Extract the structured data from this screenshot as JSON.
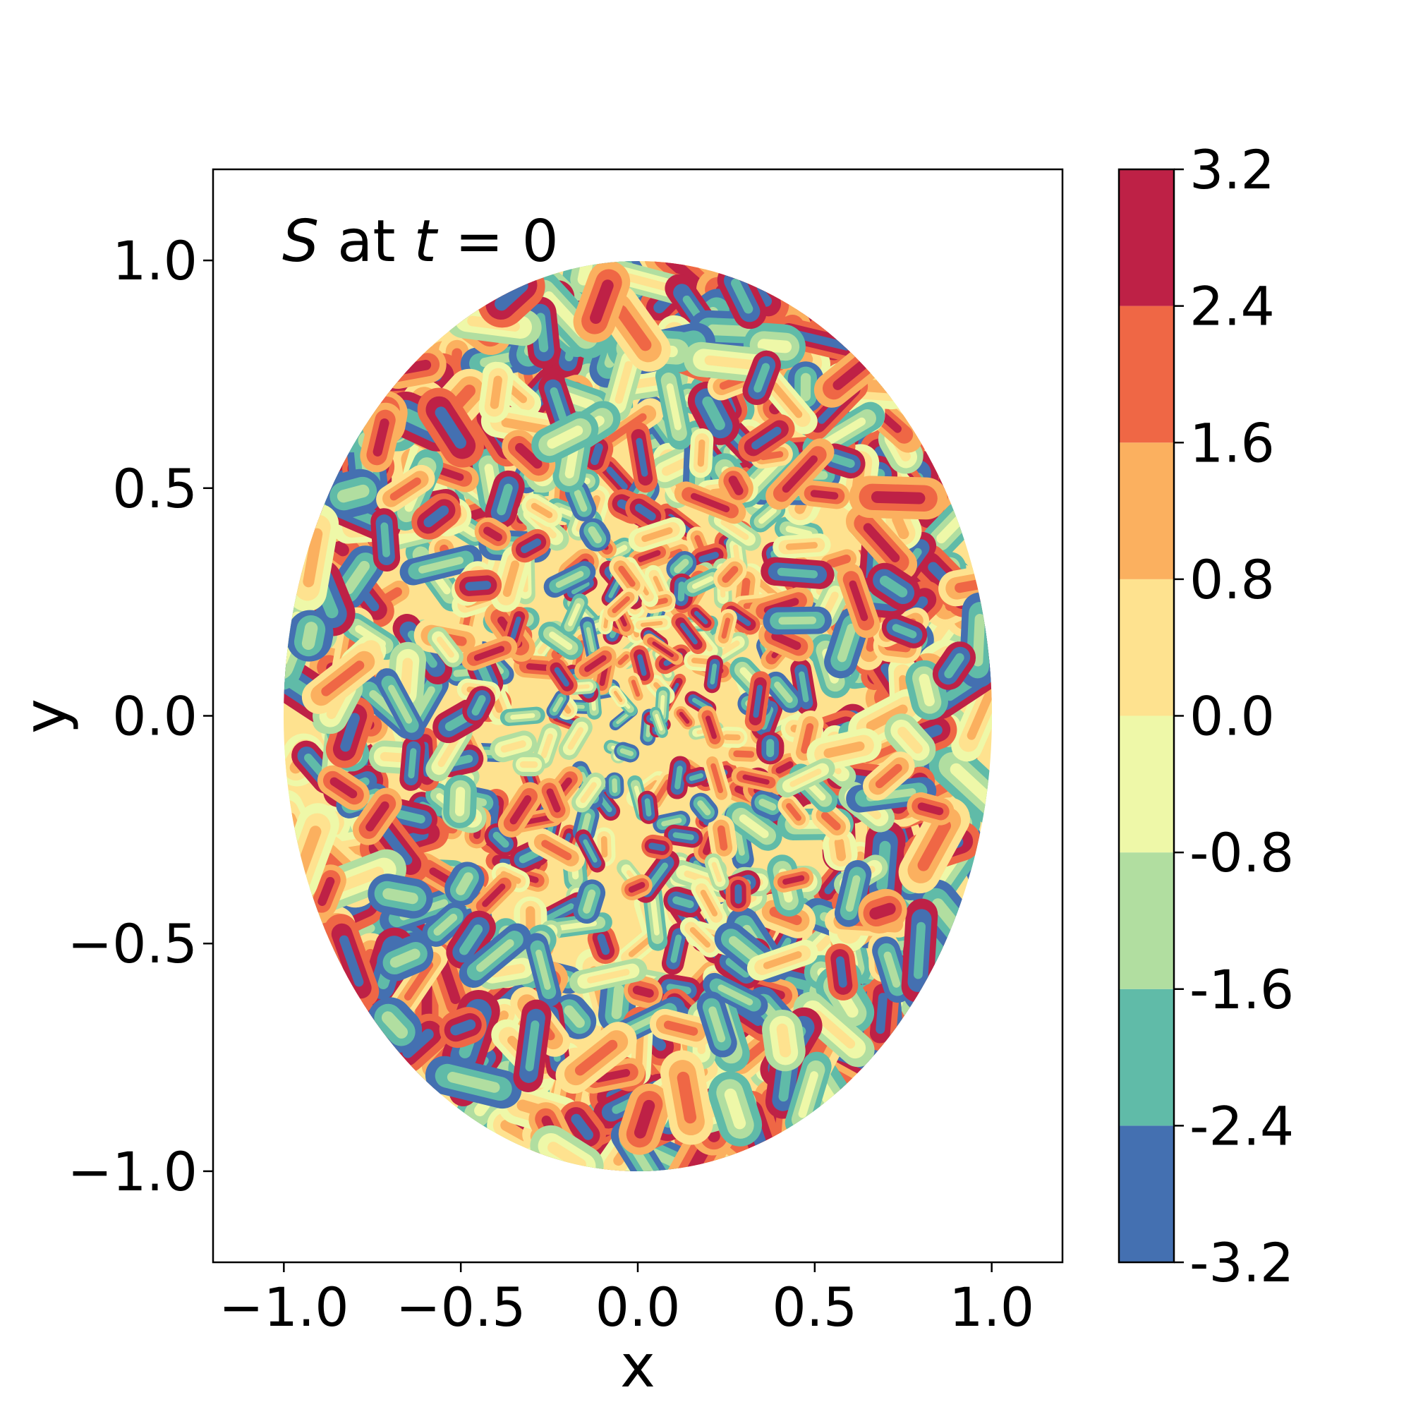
{
  "chart_data": {
    "type": "heatmap",
    "annotation": {
      "symbol": "S",
      "mid": " at ",
      "time": "t",
      "eq": " = 0"
    },
    "xlabel": "x",
    "ylabel": "y",
    "xlim": [
      -1.2,
      1.2
    ],
    "ylim": [
      -1.2,
      1.2
    ],
    "x_ticks": [
      -1.0,
      -0.5,
      0.0,
      0.5,
      1.0
    ],
    "y_ticks": [
      -1.0,
      -0.5,
      0.0,
      0.5,
      1.0
    ],
    "x_tick_labels": [
      "−1.0",
      "−0.5",
      "0.0",
      "0.5",
      "1.0"
    ],
    "y_tick_labels": [
      "−1.0",
      "−0.5",
      "0.0",
      "0.5",
      "1.0"
    ],
    "domain": "unit disk (radius 1.0, centered at origin)",
    "colormap": "Spectral_r",
    "colorbar": {
      "levels": [
        -3.2,
        -2.4,
        -1.6,
        -0.8,
        0.0,
        0.8,
        1.6,
        2.4,
        3.2
      ],
      "labels": [
        "-3.2",
        "-2.4",
        "-1.6",
        "-0.8",
        "0.0",
        "0.8",
        "1.6",
        "2.4",
        "3.2"
      ],
      "colors": [
        "#4470b1",
        "#60bba8",
        "#b1dea0",
        "#eef8a8",
        "#fee28f",
        "#fbb05f",
        "#ef6745",
        "#be2146"
      ]
    },
    "grid": false
  }
}
